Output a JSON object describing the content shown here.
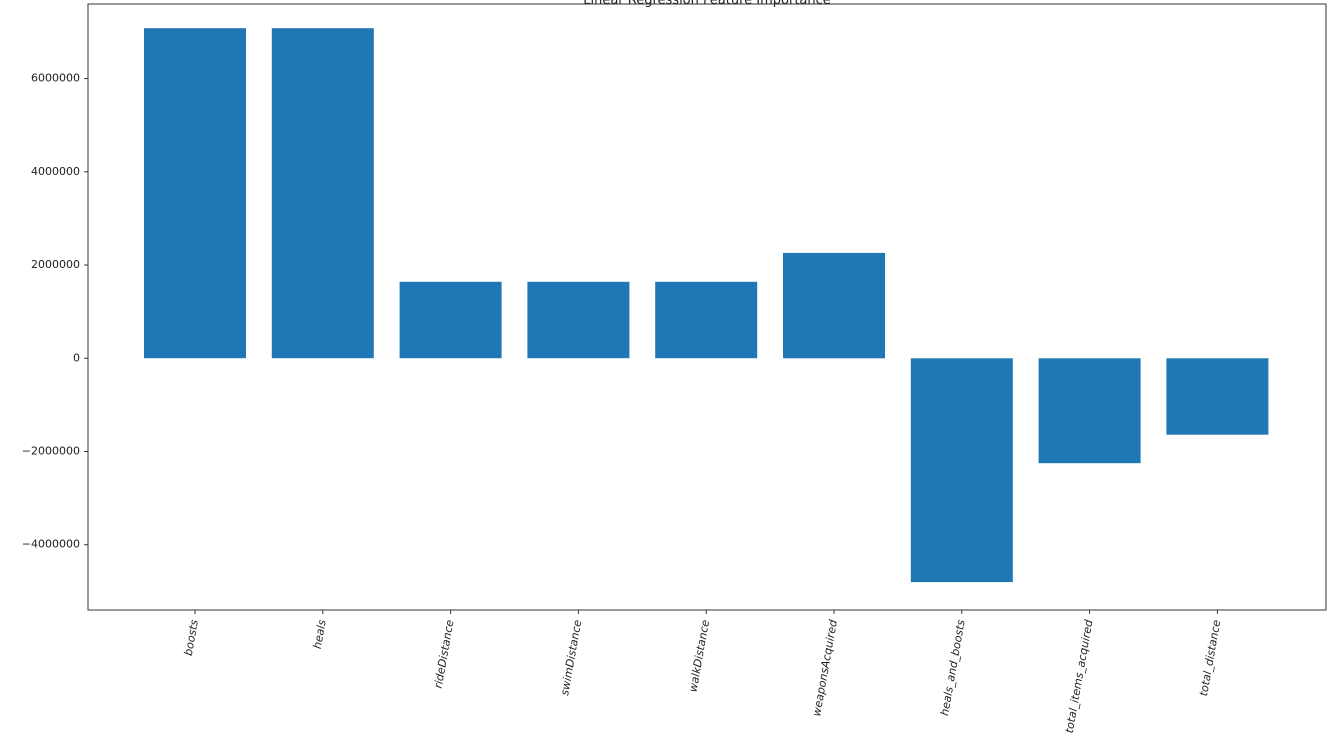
{
  "chart_data": {
    "type": "bar",
    "title": "Linear Regression Feature Importance",
    "xlabel": "",
    "ylabel": "",
    "categories": [
      "boosts",
      "heals",
      "rideDistance",
      "swimDistance",
      "walkDistance",
      "weaponsAcquired",
      "heals_and_boosts",
      "total_items_acquired",
      "total_distance"
    ],
    "values": [
      7080000,
      7080000,
      1640000,
      1640000,
      1640000,
      2260000,
      -4800000,
      -2250000,
      -1640000
    ],
    "ylim": [
      -5400000,
      7600000
    ],
    "yticks": [
      {
        "value": -4000000,
        "label": "−4000000"
      },
      {
        "value": -2000000,
        "label": "−2000000"
      },
      {
        "value": 0,
        "label": "0"
      },
      {
        "value": 2000000,
        "label": "2000000"
      },
      {
        "value": 4000000,
        "label": "4000000"
      },
      {
        "value": 6000000,
        "label": "6000000"
      }
    ],
    "bar_color": "#1f77b4",
    "x_tick_rotation_deg": -80,
    "grid": false,
    "legend": "none"
  }
}
